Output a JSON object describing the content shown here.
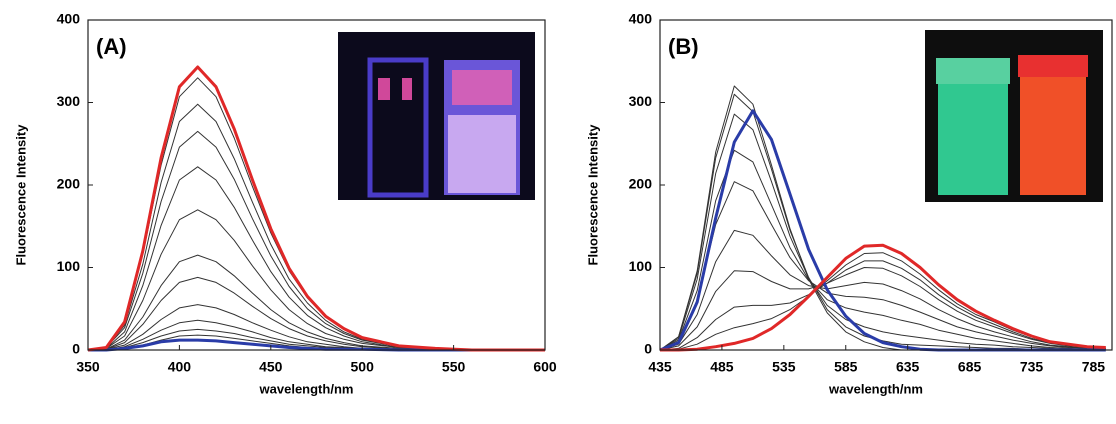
{
  "chart_data": [
    {
      "type": "line",
      "annotation": "(A)",
      "ylabel": "Fluorescence Intensity",
      "xlabel": "wavelength/nm",
      "xlim": [
        350,
        600
      ],
      "xticks": [
        350,
        400,
        450,
        500,
        550,
        600
      ],
      "ylim": [
        0,
        400
      ],
      "yticks": [
        0,
        100,
        200,
        300,
        400
      ],
      "x": [
        350,
        360,
        370,
        380,
        390,
        400,
        410,
        420,
        430,
        440,
        450,
        460,
        470,
        480,
        490,
        500,
        520,
        540,
        560,
        580,
        600
      ],
      "series": [
        {
          "color": "#333333",
          "values": [
            0,
            3,
            33,
            116,
            224,
            307,
            330,
            307,
            257,
            198,
            142,
            96,
            63,
            40,
            25,
            15,
            5,
            2,
            0,
            0,
            0
          ]
        },
        {
          "color": "#333333",
          "values": [
            0,
            3,
            30,
            104,
            203,
            277,
            298,
            277,
            232,
            179,
            128,
            86,
            57,
            36,
            22,
            13,
            4,
            1,
            0,
            0,
            0
          ]
        },
        {
          "color": "#333333",
          "values": [
            0,
            3,
            27,
            93,
            180,
            246,
            265,
            246,
            207,
            159,
            114,
            77,
            50,
            32,
            20,
            12,
            4,
            1,
            0,
            0,
            0
          ]
        },
        {
          "color": "#333333",
          "values": [
            0,
            2,
            22,
            78,
            151,
            206,
            222,
            206,
            173,
            133,
            95,
            64,
            42,
            27,
            17,
            10,
            3,
            1,
            0,
            0,
            0
          ]
        },
        {
          "color": "#333333",
          "values": [
            0,
            2,
            17,
            60,
            116,
            158,
            170,
            158,
            133,
            102,
            73,
            49,
            32,
            20,
            13,
            8,
            3,
            1,
            0,
            0,
            0
          ]
        },
        {
          "color": "#333333",
          "values": [
            0,
            1,
            12,
            40,
            78,
            107,
            115,
            107,
            90,
            69,
            49,
            33,
            22,
            14,
            9,
            5,
            2,
            1,
            0,
            0,
            0
          ]
        },
        {
          "color": "#333333",
          "values": [
            0,
            1,
            9,
            31,
            60,
            82,
            88,
            82,
            69,
            53,
            38,
            26,
            17,
            11,
            7,
            4,
            1,
            0,
            0,
            0,
            0
          ]
        },
        {
          "color": "#333333",
          "values": [
            0,
            1,
            6,
            19,
            37,
            51,
            55,
            51,
            43,
            33,
            24,
            16,
            10,
            7,
            4,
            2,
            1,
            0,
            0,
            0,
            0
          ]
        },
        {
          "color": "#333333",
          "values": [
            0,
            0,
            4,
            13,
            24,
            33,
            36,
            33,
            28,
            22,
            15,
            10,
            7,
            4,
            3,
            2,
            1,
            0,
            0,
            0,
            0
          ]
        },
        {
          "color": "#333333",
          "values": [
            0,
            0,
            3,
            9,
            17,
            23,
            25,
            23,
            20,
            15,
            11,
            7,
            5,
            3,
            2,
            1,
            0,
            0,
            0,
            0,
            0
          ]
        },
        {
          "color": "#333333",
          "values": [
            0,
            0,
            2,
            6,
            12,
            17,
            18,
            17,
            14,
            11,
            8,
            5,
            3,
            2,
            1,
            1,
            0,
            0,
            0,
            0,
            0
          ]
        },
        {
          "color": "#2a3ca8",
          "values": [
            0,
            0,
            2,
            5,
            10,
            12,
            12,
            11,
            9,
            7,
            5,
            3,
            2,
            1,
            1,
            1,
            0,
            0,
            0,
            0,
            0
          ]
        },
        {
          "color": "#e02828",
          "values": [
            0,
            3,
            34,
            120,
            233,
            319,
            343,
            319,
            268,
            206,
            147,
            99,
            65,
            41,
            26,
            15,
            5,
            2,
            0,
            0,
            0
          ]
        }
      ]
    },
    {
      "type": "line",
      "annotation": "(B)",
      "ylabel": "Fluorescence Intensity",
      "xlabel": "wavelength/nm",
      "xlim": [
        435,
        800
      ],
      "xticks": [
        435,
        485,
        535,
        585,
        635,
        685,
        735,
        785
      ],
      "ylim": [
        0,
        400
      ],
      "yticks": [
        0,
        100,
        200,
        300,
        400
      ],
      "x": [
        435,
        450,
        465,
        480,
        495,
        510,
        525,
        540,
        555,
        570,
        585,
        600,
        615,
        630,
        645,
        660,
        675,
        690,
        705,
        720,
        735,
        750,
        765,
        780,
        795
      ],
      "series": [
        {
          "color": "#333333",
          "values": [
            0,
            16,
            96,
            240,
            320,
            298,
            224,
            147,
            86,
            45,
            22,
            10,
            3,
            0,
            0,
            0,
            0,
            0,
            0,
            0,
            0,
            0,
            0,
            0,
            0
          ]
        },
        {
          "color": "#333333",
          "values": [
            0,
            16,
            93,
            233,
            310,
            289,
            219,
            145,
            88,
            49,
            28,
            17,
            11,
            7,
            6,
            5,
            4,
            3,
            2,
            2,
            1,
            1,
            0,
            0,
            0
          ]
        },
        {
          "color": "#333333",
          "values": [
            0,
            14,
            86,
            214,
            286,
            267,
            204,
            138,
            87,
            54,
            37,
            28,
            22,
            18,
            15,
            12,
            9,
            7,
            6,
            4,
            3,
            2,
            1,
            1,
            0
          ]
        },
        {
          "color": "#333333",
          "values": [
            0,
            12,
            72,
            181,
            242,
            228,
            176,
            124,
            85,
            61,
            51,
            46,
            42,
            36,
            31,
            24,
            19,
            14,
            11,
            8,
            5,
            3,
            2,
            1,
            1
          ]
        },
        {
          "color": "#333333",
          "values": [
            0,
            10,
            61,
            152,
            204,
            193,
            152,
            112,
            84,
            69,
            65,
            64,
            61,
            54,
            46,
            37,
            28,
            22,
            17,
            12,
            8,
            5,
            3,
            2,
            1
          ]
        },
        {
          "color": "#333333",
          "values": [
            0,
            7,
            43,
            107,
            145,
            139,
            114,
            91,
            78,
            74,
            78,
            82,
            80,
            72,
            62,
            49,
            38,
            29,
            22,
            16,
            10,
            6,
            4,
            2,
            2
          ]
        },
        {
          "color": "#333333",
          "values": [
            0,
            5,
            28,
            71,
            96,
            95,
            83,
            74,
            74,
            81,
            91,
            100,
            99,
            90,
            77,
            61,
            47,
            36,
            28,
            20,
            13,
            8,
            5,
            3,
            2
          ]
        },
        {
          "color": "#333333",
          "values": [
            0,
            2,
            15,
            37,
            52,
            54,
            54,
            57,
            67,
            81,
            97,
            108,
            108,
            99,
            85,
            67,
            52,
            40,
            31,
            22,
            14,
            9,
            6,
            3,
            2
          ]
        },
        {
          "color": "#333333",
          "values": [
            0,
            1,
            7,
            19,
            27,
            32,
            38,
            49,
            65,
            84,
            103,
            117,
            118,
            108,
            92,
            73,
            56,
            43,
            34,
            24,
            16,
            10,
            6,
            4,
            2
          ]
        },
        {
          "color": "#2a3ca8",
          "values": [
            0,
            9,
            58,
            160,
            252,
            290,
            255,
            189,
            122,
            73,
            41,
            20,
            9,
            4,
            1,
            0,
            0,
            0,
            0,
            0,
            0,
            0,
            0,
            0,
            0
          ]
        },
        {
          "color": "#e02828",
          "values": [
            0,
            0,
            1,
            4,
            8,
            14,
            26,
            43,
            65,
            88,
            111,
            126,
            127,
            117,
            100,
            79,
            61,
            47,
            36,
            26,
            17,
            10,
            7,
            4,
            3
          ]
        }
      ]
    }
  ]
}
